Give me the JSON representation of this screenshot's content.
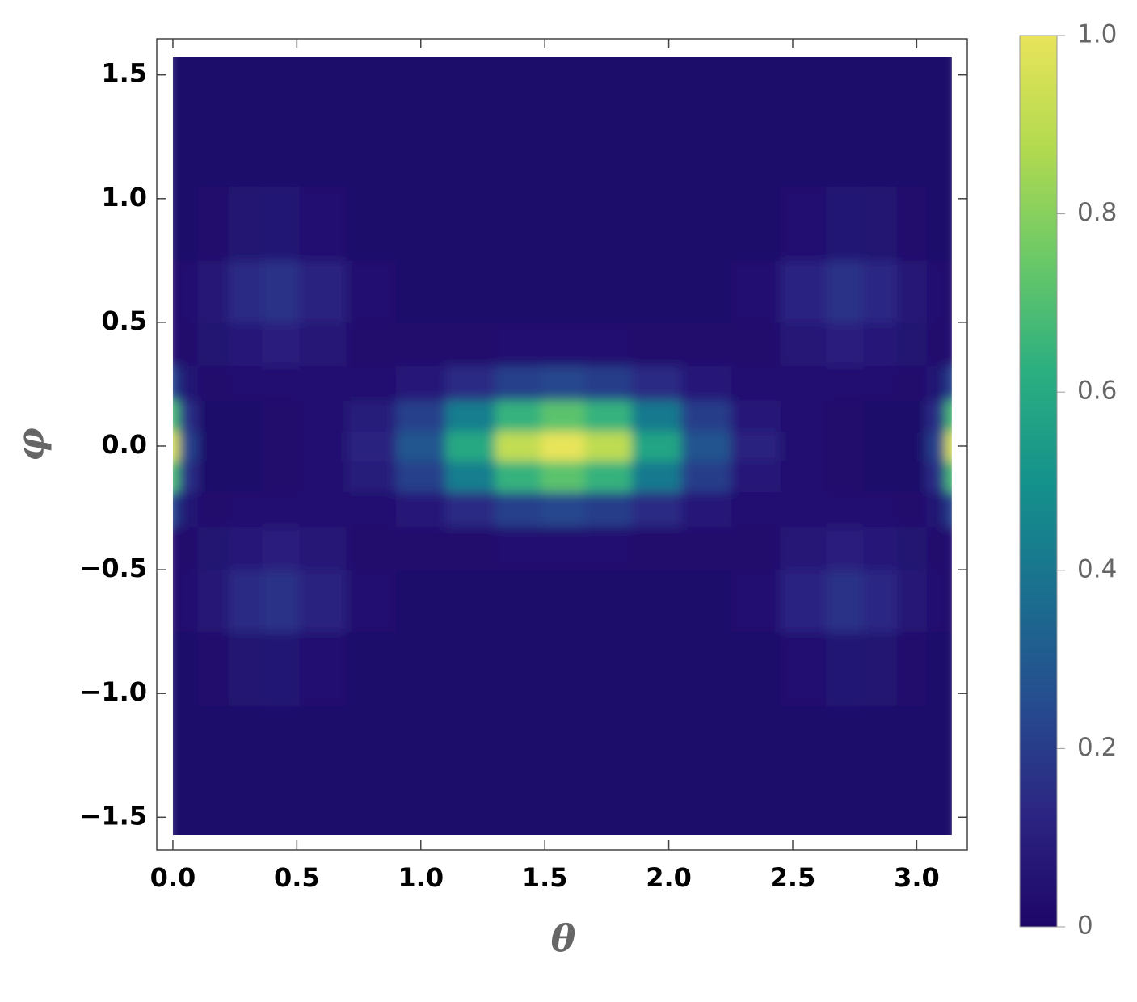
{
  "chart_data": {
    "type": "heatmap",
    "xlabel": "θ",
    "ylabel": "φ",
    "x": [
      0,
      0.05,
      0.15,
      0.3,
      0.42,
      0.6,
      0.8,
      1.0,
      1.2,
      1.4,
      1.5708,
      1.75,
      1.95,
      2.15,
      2.35,
      2.55,
      2.72,
      2.85,
      2.99,
      3.09,
      3.1416
    ],
    "y": [
      -1.5708,
      -1.2,
      -0.9,
      -0.6,
      -0.4,
      -0.25,
      -0.12,
      0,
      0.12,
      0.25,
      0.4,
      0.6,
      0.9,
      1.2,
      1.5708
    ],
    "values": [
      [
        0.02,
        0.02,
        0.02,
        0.02,
        0.02,
        0.02,
        0.02,
        0.02,
        0.02,
        0.02,
        0.02,
        0.02,
        0.02,
        0.02,
        0.02,
        0.02,
        0.02,
        0.02,
        0.02,
        0.02,
        0.02
      ],
      [
        0.02,
        0.02,
        0.02,
        0.02,
        0.02,
        0.02,
        0.02,
        0.02,
        0.02,
        0.02,
        0.02,
        0.02,
        0.02,
        0.02,
        0.02,
        0.02,
        0.02,
        0.02,
        0.02,
        0.02,
        0.02
      ],
      [
        0.02,
        0.02,
        0.03,
        0.05,
        0.06,
        0.04,
        0.02,
        0.02,
        0.02,
        0.02,
        0.02,
        0.02,
        0.02,
        0.02,
        0.02,
        0.04,
        0.06,
        0.05,
        0.03,
        0.02,
        0.02
      ],
      [
        0.03,
        0.04,
        0.07,
        0.14,
        0.17,
        0.11,
        0.04,
        0.02,
        0.02,
        0.02,
        0.02,
        0.02,
        0.02,
        0.02,
        0.04,
        0.12,
        0.17,
        0.13,
        0.07,
        0.04,
        0.03
      ],
      [
        0.04,
        0.03,
        0.05,
        0.08,
        0.1,
        0.07,
        0.03,
        0.03,
        0.03,
        0.04,
        0.04,
        0.04,
        0.03,
        0.03,
        0.03,
        0.07,
        0.1,
        0.08,
        0.05,
        0.03,
        0.04
      ],
      [
        0.22,
        0.06,
        0.03,
        0.04,
        0.04,
        0.04,
        0.04,
        0.08,
        0.14,
        0.21,
        0.23,
        0.2,
        0.14,
        0.08,
        0.04,
        0.04,
        0.04,
        0.04,
        0.03,
        0.06,
        0.22
      ],
      [
        0.69,
        0.16,
        0.02,
        0.02,
        0.03,
        0.04,
        0.09,
        0.21,
        0.43,
        0.64,
        0.72,
        0.64,
        0.41,
        0.2,
        0.08,
        0.04,
        0.03,
        0.02,
        0.02,
        0.16,
        0.69
      ],
      [
        0.97,
        0.22,
        0.02,
        0.02,
        0.03,
        0.04,
        0.11,
        0.29,
        0.6,
        0.91,
        1.0,
        0.9,
        0.58,
        0.28,
        0.11,
        0.04,
        0.03,
        0.02,
        0.02,
        0.22,
        0.97
      ],
      [
        0.69,
        0.16,
        0.02,
        0.02,
        0.03,
        0.04,
        0.09,
        0.21,
        0.43,
        0.64,
        0.72,
        0.64,
        0.41,
        0.2,
        0.08,
        0.04,
        0.03,
        0.02,
        0.02,
        0.16,
        0.69
      ],
      [
        0.22,
        0.06,
        0.03,
        0.04,
        0.04,
        0.04,
        0.04,
        0.08,
        0.14,
        0.21,
        0.23,
        0.2,
        0.14,
        0.08,
        0.04,
        0.04,
        0.04,
        0.04,
        0.03,
        0.06,
        0.22
      ],
      [
        0.04,
        0.03,
        0.05,
        0.08,
        0.1,
        0.07,
        0.03,
        0.03,
        0.03,
        0.04,
        0.04,
        0.04,
        0.03,
        0.03,
        0.03,
        0.07,
        0.1,
        0.08,
        0.05,
        0.03,
        0.04
      ],
      [
        0.03,
        0.04,
        0.07,
        0.14,
        0.17,
        0.11,
        0.04,
        0.02,
        0.02,
        0.02,
        0.02,
        0.02,
        0.02,
        0.02,
        0.04,
        0.12,
        0.17,
        0.13,
        0.07,
        0.04,
        0.03
      ],
      [
        0.02,
        0.02,
        0.03,
        0.05,
        0.06,
        0.04,
        0.02,
        0.02,
        0.02,
        0.02,
        0.02,
        0.02,
        0.02,
        0.02,
        0.02,
        0.04,
        0.06,
        0.05,
        0.03,
        0.02,
        0.02
      ],
      [
        0.02,
        0.02,
        0.02,
        0.02,
        0.02,
        0.02,
        0.02,
        0.02,
        0.02,
        0.02,
        0.02,
        0.02,
        0.02,
        0.02,
        0.02,
        0.02,
        0.02,
        0.02,
        0.02,
        0.02,
        0.02
      ],
      [
        0.02,
        0.02,
        0.02,
        0.02,
        0.02,
        0.02,
        0.02,
        0.02,
        0.02,
        0.02,
        0.02,
        0.02,
        0.02,
        0.02,
        0.02,
        0.02,
        0.02,
        0.02,
        0.02,
        0.02,
        0.02
      ]
    ],
    "xlim": [
      -0.065,
      3.204
    ],
    "ylim": [
      -1.633,
      1.646
    ],
    "xticks": [
      {
        "value": 0,
        "label": "0.0"
      },
      0.5,
      {
        "value": 1,
        "label": "1.0"
      },
      1.5,
      {
        "value": 2,
        "label": "2.0"
      },
      2.5,
      {
        "value": 3,
        "label": "3.0"
      }
    ],
    "yticks": [
      {
        "value": -1.5,
        "label": "−1.5"
      },
      {
        "value": -1,
        "label": "−1.0"
      },
      {
        "value": -0.5,
        "label": "−0.5"
      },
      {
        "value": 0,
        "label": "0.0"
      },
      0.5,
      {
        "value": 1,
        "label": "1.0"
      },
      1.5
    ],
    "zlim": [
      0,
      1
    ],
    "zticks": [
      0,
      0.2,
      0.4,
      0.6,
      0.8,
      {
        "value": 1,
        "label": "1.0"
      }
    ],
    "colormap": [
      "#1d0667",
      "#2c2482",
      "#264c8f",
      "#1a6f8f",
      "#14928c",
      "#2caf80",
      "#6bc967",
      "#b3da4f",
      "#e8e45a"
    ]
  }
}
